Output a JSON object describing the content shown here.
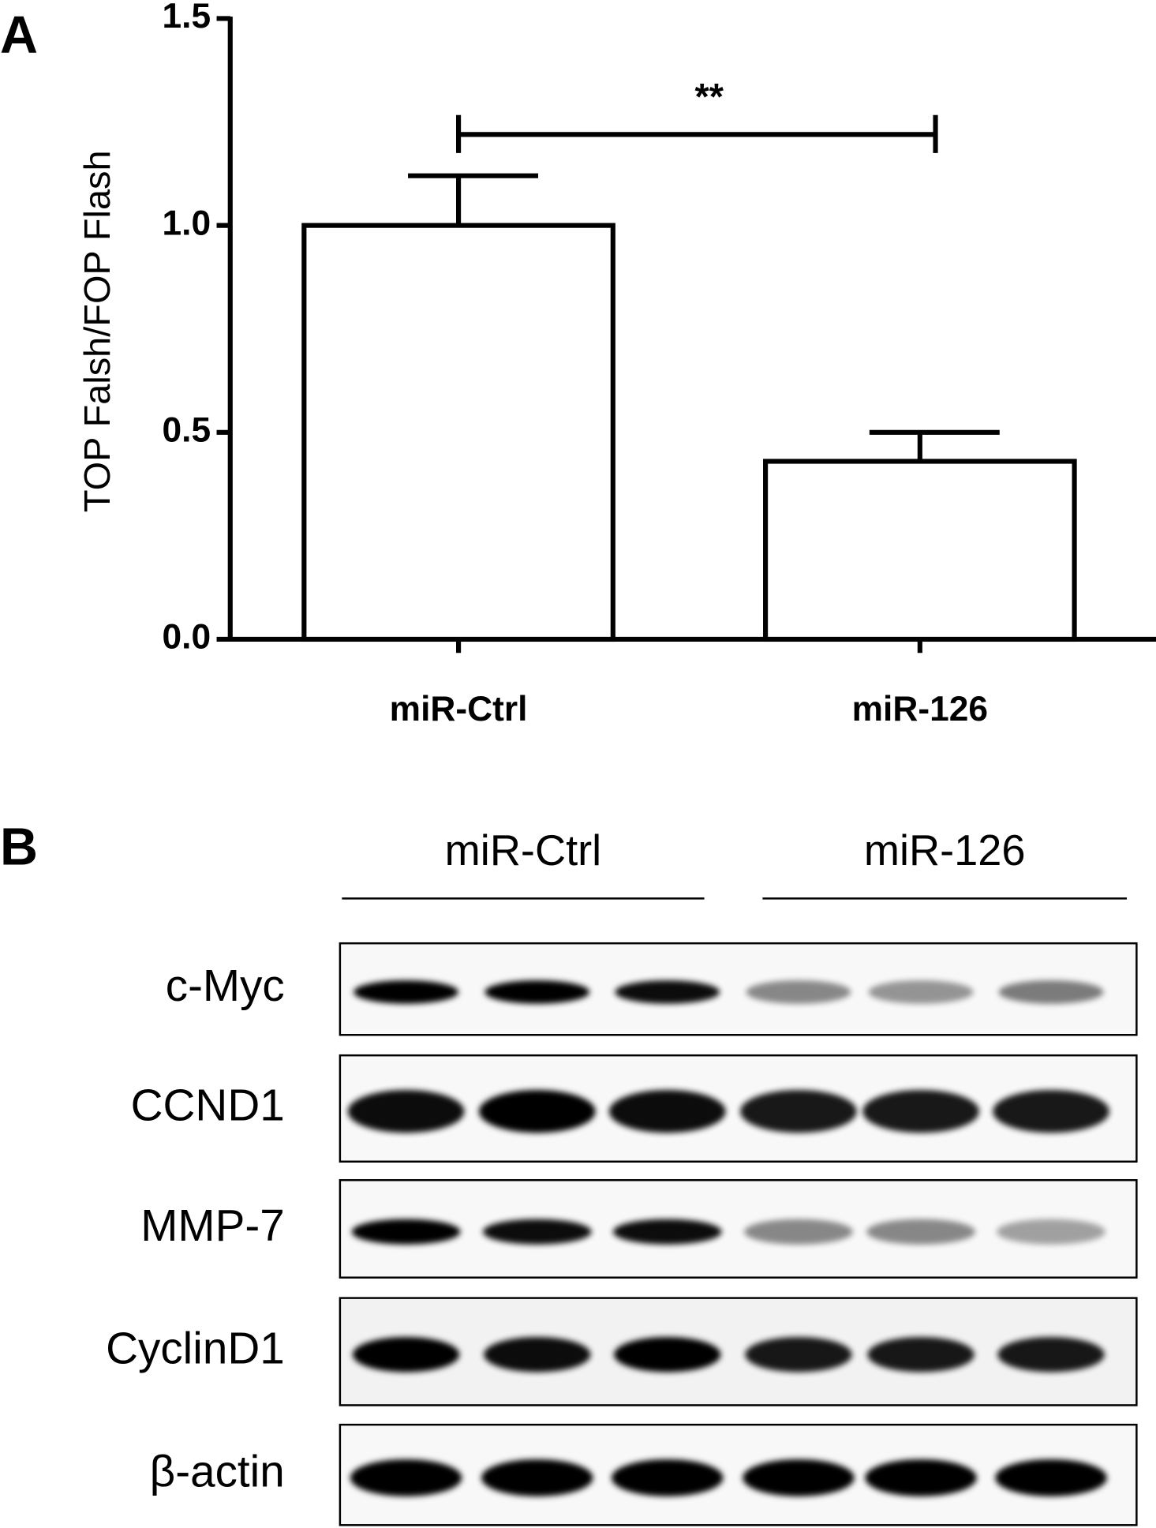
{
  "chart_data": {
    "type": "bar",
    "panel": "A",
    "y_label": "TOP Falsh/FOP Flash",
    "categories": [
      "miR-Ctrl",
      "miR-126"
    ],
    "values": [
      1.0,
      0.43
    ],
    "errors": [
      0.12,
      0.07
    ],
    "color": "#ffffff",
    "ylim": [
      0,
      1.5
    ],
    "yticks": [
      {
        "value": 0,
        "label": "0.0"
      },
      {
        "value": 0.5,
        "label": "0.5"
      },
      {
        "value": 1,
        "label": "1.0"
      },
      {
        "value": 1.5,
        "label": "1.5"
      }
    ],
    "annotation": "**"
  },
  "blot": {
    "panel": "B",
    "groups": [
      "miR-Ctrl",
      "miR-126"
    ],
    "rows": [
      "c-Myc",
      "CCND1",
      "MMP-7",
      "CyclinD1",
      "β-actin"
    ]
  }
}
